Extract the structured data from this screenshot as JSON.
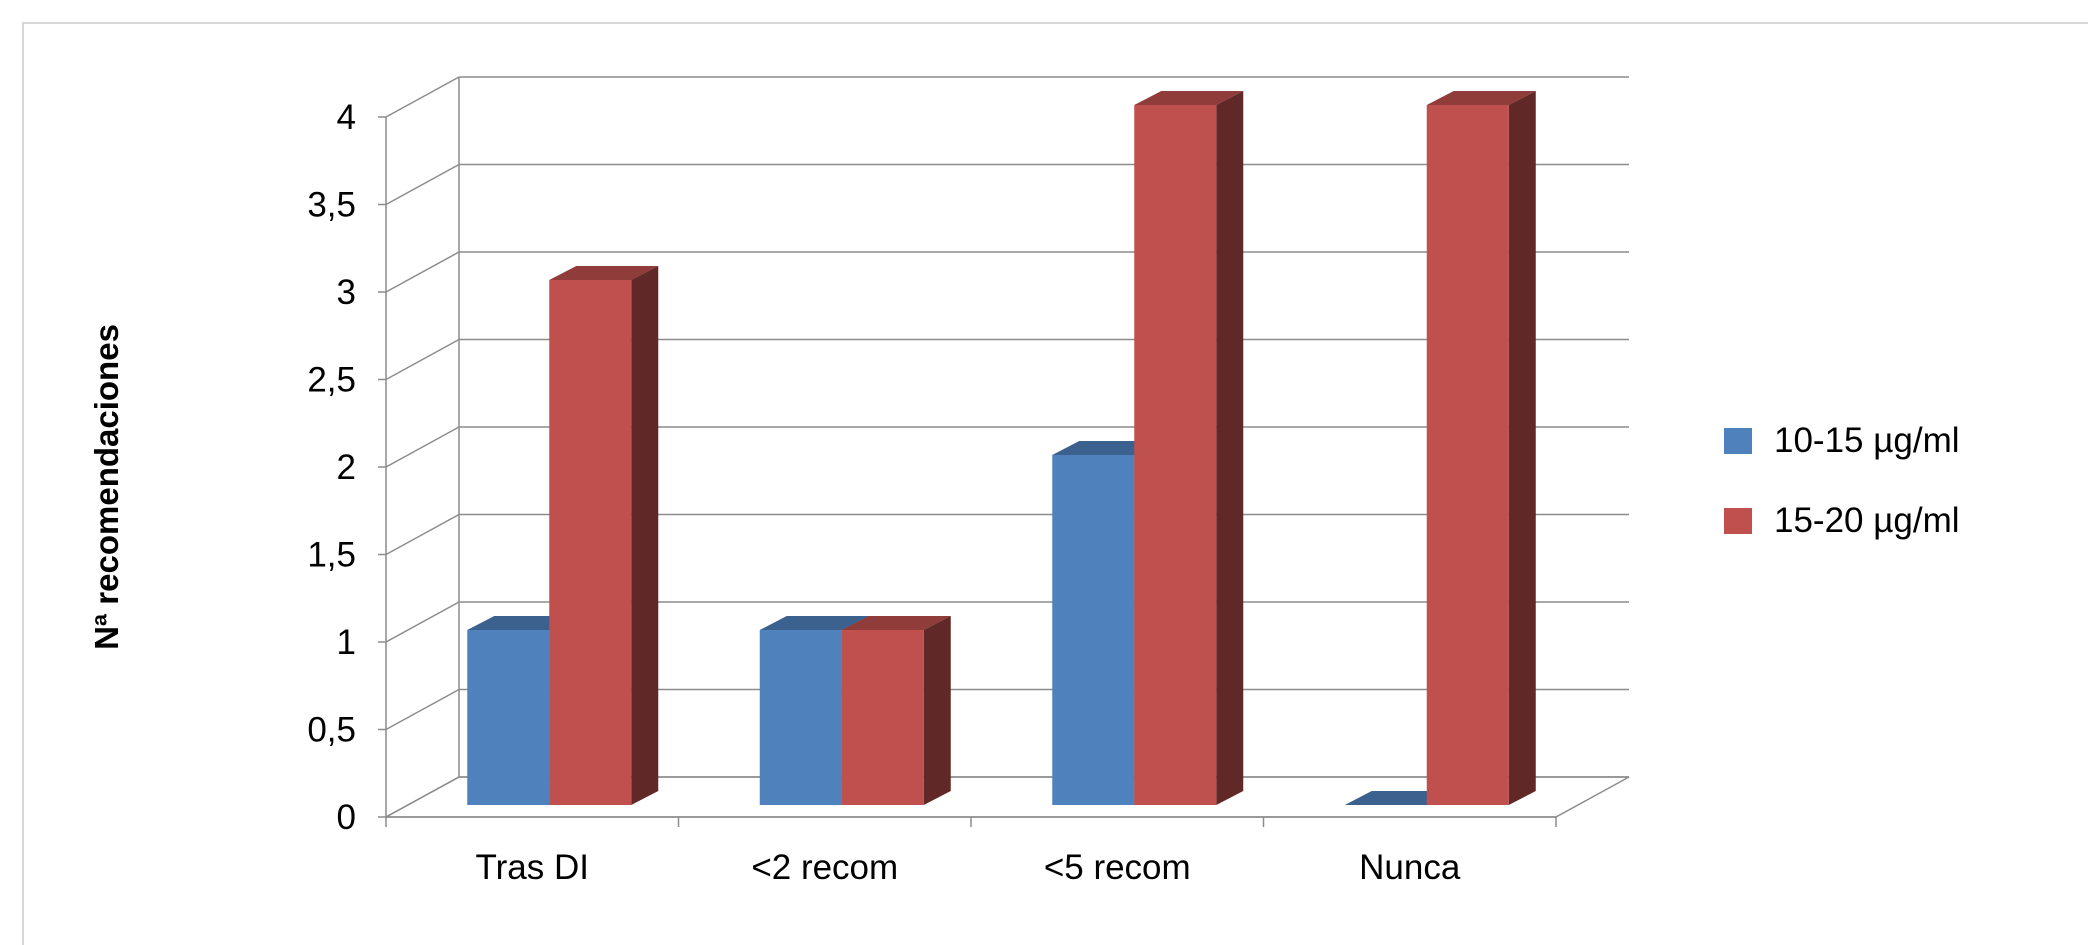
{
  "chart_data": {
    "type": "bar",
    "style": "3d-clustered-column",
    "title": "",
    "xlabel": "",
    "ylabel": "Nª recomendaciones",
    "ylim": [
      0,
      4
    ],
    "yticks": [
      "0",
      "0,5",
      "1",
      "1,5",
      "2",
      "2,5",
      "3",
      "3,5",
      "4"
    ],
    "categories": [
      "Tras DI",
      "<2 recom",
      "<5 recom",
      "Nunca"
    ],
    "series": [
      {
        "name": "10-15 µg/ml",
        "values": [
          1,
          1,
          2,
          0
        ],
        "color": "#4F81BD"
      },
      {
        "name": "15-20 µg/ml",
        "values": [
          3,
          1,
          4,
          4
        ],
        "color": "#C0504D"
      }
    ],
    "grid": true,
    "legend_position": "right"
  }
}
